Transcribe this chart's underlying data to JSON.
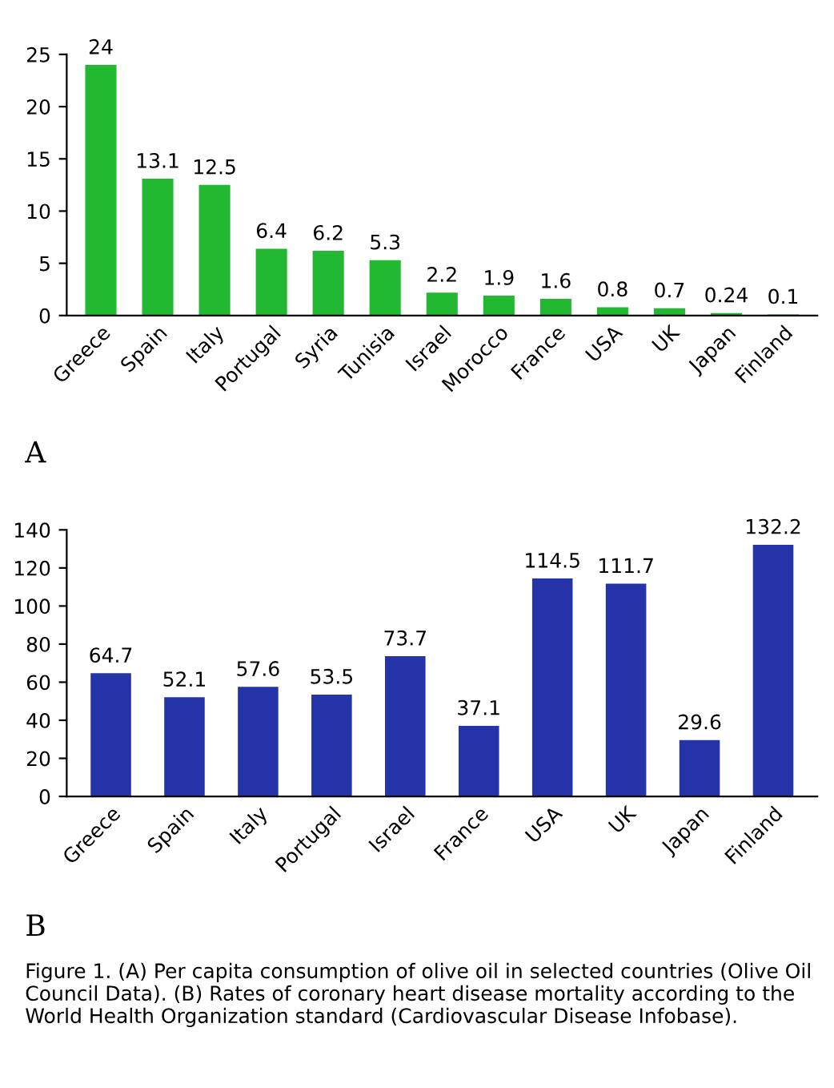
{
  "chart_data": [
    {
      "type": "bar",
      "categories": [
        "Greece",
        "Spain",
        "Italy",
        "Portugal",
        "Syria",
        "Tunisia",
        "Israel",
        "Morocco",
        "France",
        "USA",
        "UK",
        "Japan",
        "Finland"
      ],
      "values": [
        24,
        13.1,
        12.5,
        6.4,
        6.2,
        5.3,
        2.2,
        1.9,
        1.6,
        0.8,
        0.7,
        0.24,
        0.1
      ],
      "color": "#22b832",
      "ylim": [
        0,
        25
      ],
      "yticks": [
        0,
        5,
        10,
        15,
        20,
        25
      ],
      "grid": false,
      "data_labels": true,
      "annotations": [
        "A"
      ]
    },
    {
      "type": "bar",
      "categories": [
        "Greece",
        "Spain",
        "Italy",
        "Portugal",
        "Israel",
        "France",
        "USA",
        "UK",
        "Japan",
        "Finland"
      ],
      "values": [
        64.7,
        52.1,
        57.6,
        53.5,
        73.7,
        37.1,
        114.5,
        111.7,
        29.6,
        132.2
      ],
      "color": "#2434a8",
      "ylim": [
        0,
        140
      ],
      "yticks": [
        0,
        20,
        40,
        60,
        80,
        100,
        120,
        140
      ],
      "grid": false,
      "data_labels": true,
      "annotations": [
        "B",
        "Figure 1. (A) Per capita consumption of olive oil in selected countries (Olive Oil Council Data). (B) Rates of coronary heart disease mortality according to the World Health Organization standard (Cardiovascular Disease Infobase)."
      ]
    }
  ]
}
